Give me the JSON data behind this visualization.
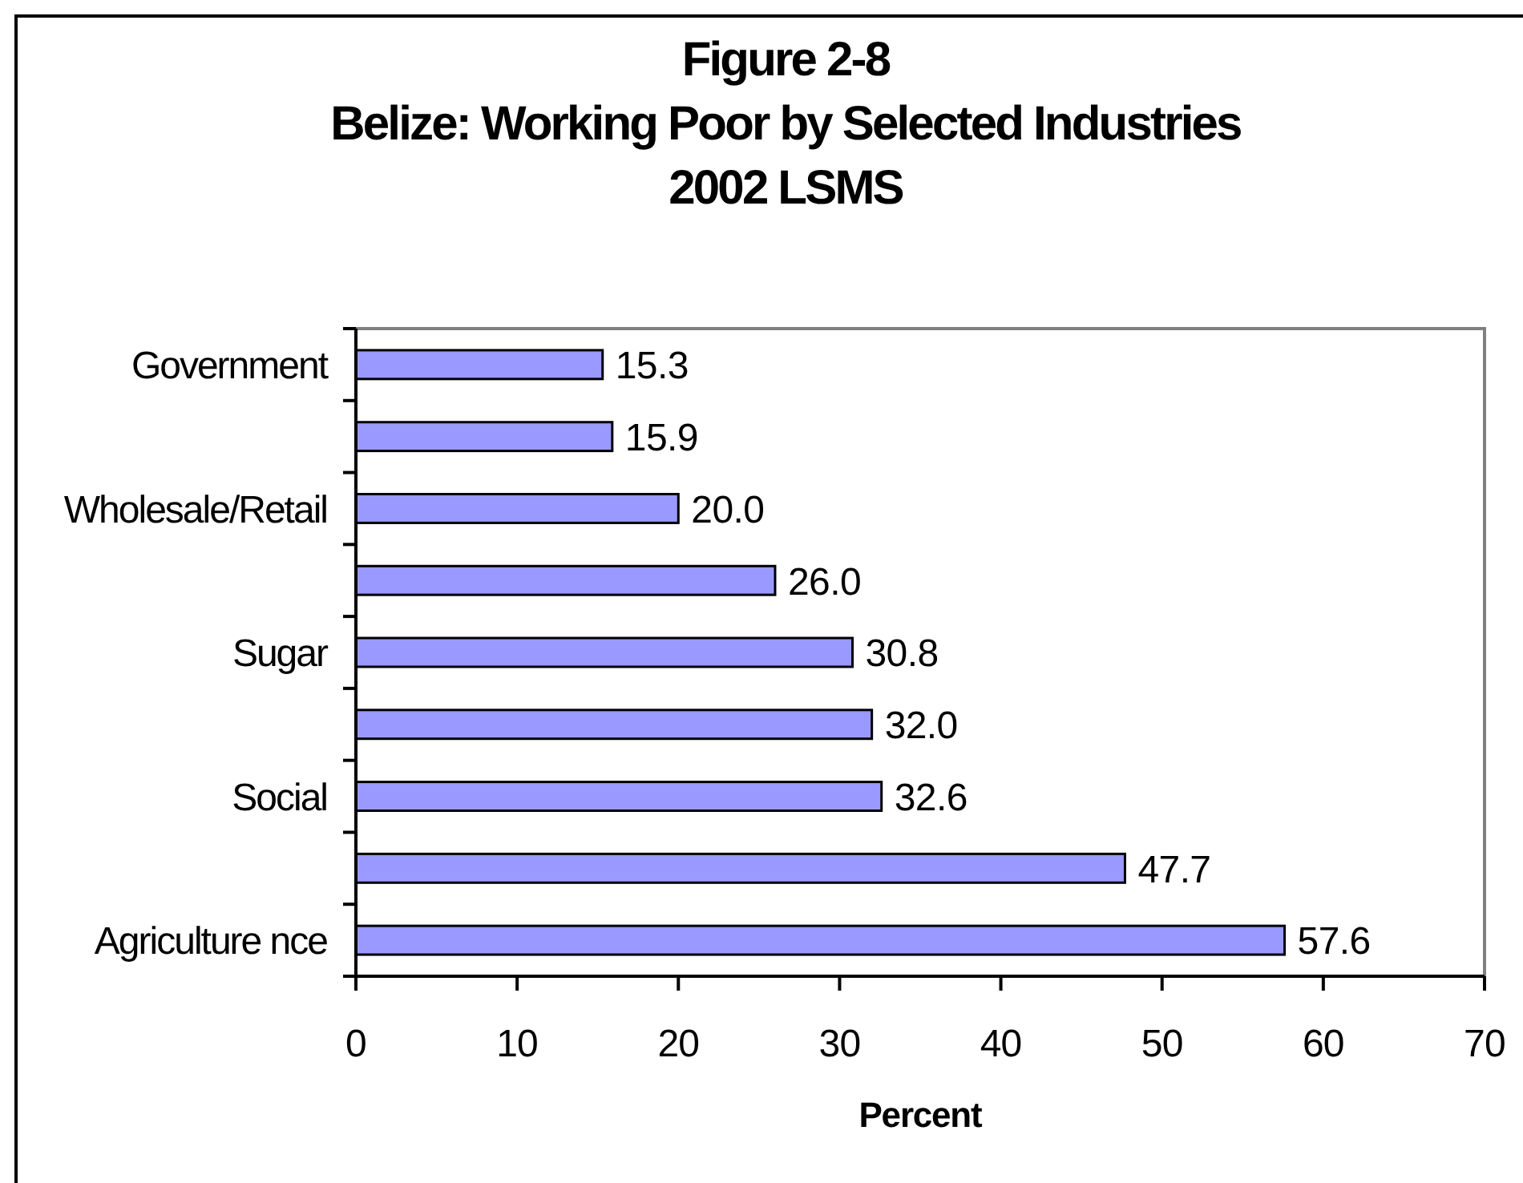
{
  "chart_data": {
    "type": "bar",
    "orientation": "horizontal",
    "title": "Figure 2-8\nBelize: Working Poor by Selected Industries\n2002 LSMS",
    "xlabel": "Percent",
    "categories": [
      "Government",
      null,
      "Wholesale/Retail",
      null,
      "Sugar",
      null,
      "Social",
      null,
      "Agriculture nce"
    ],
    "values": [
      15.3,
      15.9,
      20.0,
      26.0,
      30.8,
      32.0,
      32.6,
      47.7,
      57.6
    ],
    "value_labels": [
      "15.3",
      "15.9",
      "20.0",
      "26.0",
      "30.8",
      "32.0",
      "32.6",
      "47.7",
      "57.6"
    ],
    "color": "#9999ff",
    "xlim": [
      0,
      70
    ],
    "xticks": [
      0,
      10,
      20,
      30,
      40,
      50,
      60,
      70
    ]
  }
}
